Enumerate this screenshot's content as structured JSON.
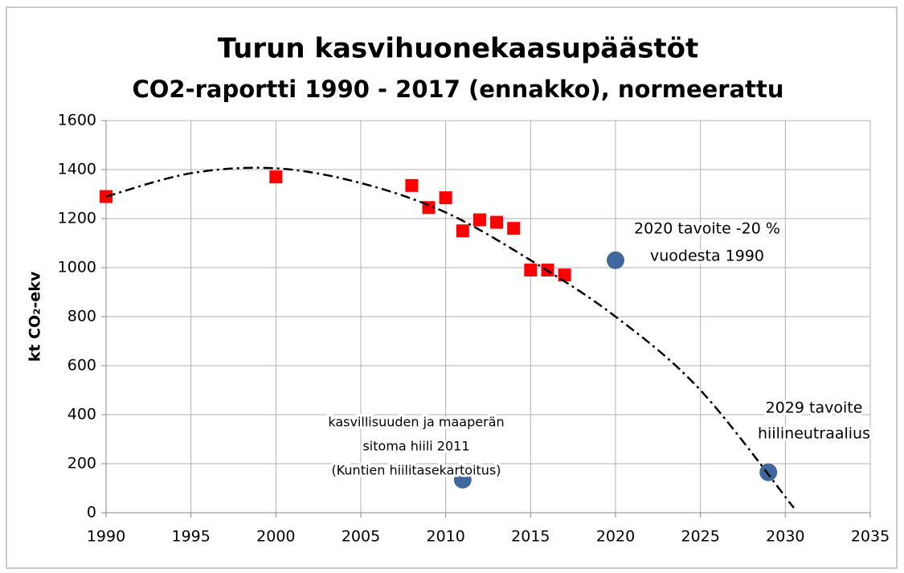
{
  "chart_data": {
    "type": "scatter",
    "title": "Turun kasvihuonekaasupäästöt",
    "subtitle": "CO2-raportti 1990 - 2017 (ennakko), normeerattu",
    "ylabel": "kt CO₂-ekv",
    "xlim": [
      1990,
      2035
    ],
    "xticks": [
      1990,
      1995,
      2000,
      2005,
      2010,
      2015,
      2020,
      2025,
      2030,
      2035
    ],
    "ylim": [
      0,
      1600
    ],
    "yticks": [
      0,
      200,
      400,
      600,
      800,
      1000,
      1200,
      1400,
      1600
    ],
    "grid": true,
    "series": [
      {
        "marker": "square",
        "color": "#ff0000",
        "x": [
          1990,
          2000,
          2008,
          2009,
          2010,
          2011,
          2012,
          2013,
          2014,
          2015,
          2016,
          2017
        ],
        "values": [
          1290,
          1370,
          1335,
          1245,
          1285,
          1150,
          1195,
          1185,
          1160,
          990,
          990,
          970
        ]
      },
      {
        "marker": "circle",
        "color": "#41679f",
        "x": [
          2020,
          2011,
          2029
        ],
        "values": [
          1030,
          135,
          165
        ]
      },
      {
        "marker": "trendline",
        "color": "#000000",
        "x": [
          1990,
          1995,
          2000,
          2005,
          2010,
          2015,
          2020,
          2025,
          2030.5
        ],
        "values": [
          1290,
          1385,
          1405,
          1345,
          1225,
          1030,
          800,
          500,
          20
        ]
      }
    ],
    "annotations": [
      {
        "lines": [
          "2020 tavoite -20 %",
          "vuodesta 1990"
        ]
      },
      {
        "lines": [
          "kasvillisuuden ja maaperän",
          "sitoma hiili 2011",
          "(Kuntien hiilitasekartoitus)"
        ]
      },
      {
        "lines": [
          "2029 tavoite",
          "hiilineutraalius"
        ]
      }
    ]
  }
}
